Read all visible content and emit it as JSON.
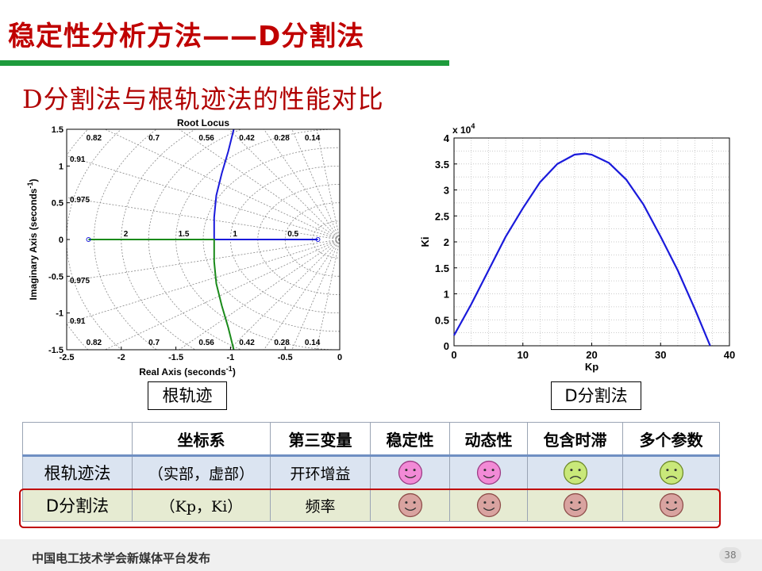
{
  "slide": {
    "title": "稳定性分析方法——D分割法",
    "subtitle": "D分割法与根轨迹法的性能对比",
    "label_left": "根轨迹",
    "label_right": "D分割法",
    "page_number": "38",
    "footer": "中国电工技术学会新媒体平台发布",
    "colors": {
      "title": "#c00000",
      "bar": "#1e9b3c",
      "happy": "#f28ad6",
      "neutral": "#c9e87a",
      "dim": "#d9a3a0"
    }
  },
  "table": {
    "headers": [
      "",
      "坐标系",
      "第三变量",
      "稳定性",
      "动态性",
      "包含时滞",
      "多个参数"
    ],
    "rows": [
      {
        "method": "根轨迹法",
        "coord": "（实部，虚部）",
        "third": "开环增益",
        "faces": [
          "smile",
          "smile",
          "frown",
          "frown"
        ]
      },
      {
        "method": "D分割法",
        "coord": "（Kp，Ki）",
        "third": "频率",
        "faces": [
          "smile-dim",
          "smile-dim",
          "smile-dim",
          "smile-dim"
        ]
      }
    ]
  },
  "chart_data": [
    {
      "type": "line",
      "title": "Root Locus",
      "xlabel": "Real Axis (seconds",
      "xlabel_sup": "-1",
      "xlabel_close": ")",
      "ylabel": "Imaginary Axis (seconds",
      "ylabel_sup": "-1",
      "ylabel_close": ")",
      "xlim": [
        -2.5,
        0
      ],
      "ylim": [
        -1.5,
        1.5
      ],
      "xticks": [
        "-2.5",
        "-2",
        "-1.5",
        "-1",
        "-0.5",
        "0"
      ],
      "yticks": [
        "-1.5",
        "-1",
        "-0.5",
        "0",
        "0.5",
        "1",
        "1.5"
      ],
      "damping_labels_top": [
        "0.82",
        "0.7",
        "0.56",
        "0.42",
        "0.28",
        "0.14"
      ],
      "damping_labels_bottom": [
        "0.82",
        "0.7",
        "0.56",
        "0.42",
        "0.28",
        "0.14"
      ],
      "damping_labels_left": [
        "0.91",
        "0.975",
        "0.975",
        "0.91"
      ],
      "freq_labels": [
        "2",
        "1.5",
        "1",
        "0.5"
      ],
      "grid": true,
      "series": [
        {
          "color": "#1a1adb",
          "points": [
            [
              -0.2,
              0
            ],
            [
              -1.15,
              0
            ],
            [
              -1.15,
              0.3
            ],
            [
              -1.13,
              0.6
            ],
            [
              -1.08,
              0.9
            ],
            [
              -1.02,
              1.2
            ],
            [
              -0.97,
              1.5
            ]
          ]
        },
        {
          "color": "#1a8a1a",
          "points": [
            [
              -2.3,
              0
            ],
            [
              -1.15,
              0
            ],
            [
              -1.15,
              -0.3
            ],
            [
              -1.13,
              -0.6
            ],
            [
              -1.08,
              -0.9
            ],
            [
              -1.02,
              -1.2
            ],
            [
              -0.97,
              -1.5
            ]
          ]
        }
      ],
      "poles": [
        -2.3,
        -0.2
      ]
    },
    {
      "type": "line",
      "title": "",
      "xlabel": "Kp",
      "ylabel": "Ki",
      "y_multiplier": "x 10",
      "y_multiplier_exp": "4",
      "xlim": [
        0,
        40
      ],
      "ylim": [
        0,
        4
      ],
      "xticks": [
        "0",
        "10",
        "20",
        "30",
        "40"
      ],
      "yticks": [
        "0",
        "0.5",
        "1",
        "1.5",
        "2",
        "2.5",
        "3",
        "3.5",
        "4"
      ],
      "grid": true,
      "series": [
        {
          "color": "#1a1adb",
          "x": [
            0,
            2.5,
            5,
            7.5,
            10,
            12.5,
            15,
            17.5,
            19,
            20,
            22.5,
            25,
            27.5,
            30,
            32.5,
            35,
            37.2
          ],
          "y": [
            0.2,
            0.8,
            1.45,
            2.1,
            2.65,
            3.15,
            3.5,
            3.68,
            3.7,
            3.68,
            3.52,
            3.2,
            2.72,
            2.1,
            1.45,
            0.7,
            0
          ]
        }
      ]
    }
  ]
}
